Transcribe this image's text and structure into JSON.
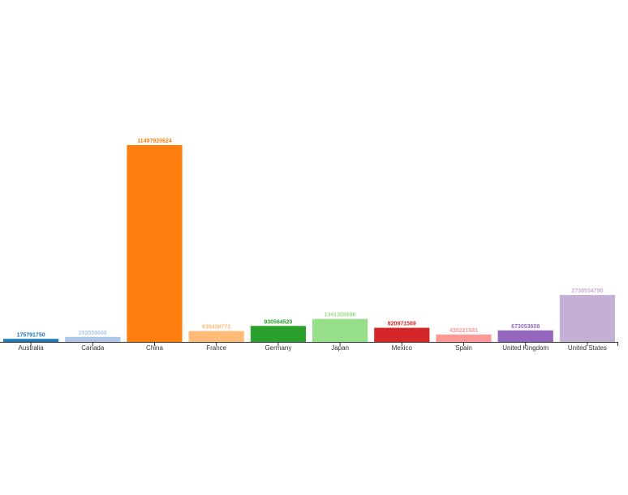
{
  "chart_data": {
    "type": "bar",
    "categories": [
      "Australia",
      "Canada",
      "China",
      "France",
      "Germany",
      "Japan",
      "Mexico",
      "Spain",
      "United Kingdom",
      "United States"
    ],
    "values": [
      175791750,
      293559608,
      11497920624,
      635430772,
      930564520,
      1341305696,
      820971569,
      430221581,
      673053608,
      2738534790
    ],
    "value_labels": [
      "175791750",
      "293559608",
      "11497920624",
      "635430772",
      "930564520",
      "1341305696",
      "820971569",
      "430221581",
      "673053608",
      "2738534790"
    ],
    "bar_colors": [
      "#1f77b4",
      "#aec7e8",
      "#ff7f0e",
      "#ffbb78",
      "#2ca02c",
      "#98df8a",
      "#d62728",
      "#ff9896",
      "#9467bd",
      "#c5b0d5"
    ],
    "label_colors": [
      "#1f77b4",
      "#aec7e8",
      "#ff7f0e",
      "#ffbb78",
      "#2ca02c",
      "#98df8a",
      "#d62728",
      "#ff9896",
      "#9467bd",
      "#c5b0d5"
    ],
    "ylim": [
      0,
      11497920624
    ],
    "grid": false,
    "legend": "none"
  }
}
